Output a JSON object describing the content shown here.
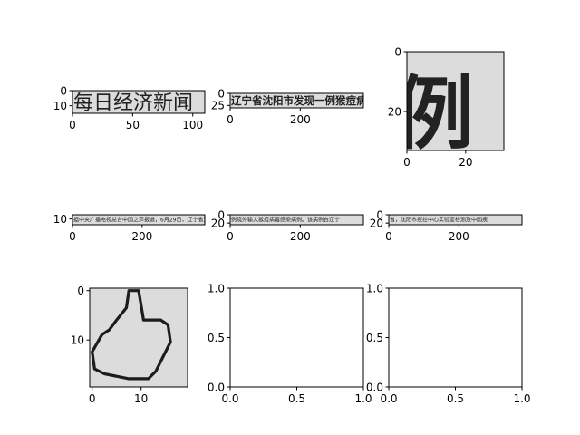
{
  "figure": {
    "background": "#ffffff",
    "image_background": "#dcdcdc",
    "axis_color": "#000000"
  },
  "chart_data": [
    {
      "type": "image",
      "panel": "row1-col1",
      "xlim": [
        0,
        110
      ],
      "ylim": [
        15,
        0
      ],
      "xticks": [
        "0",
        "50",
        "100"
      ],
      "yticks": [
        "0",
        "10"
      ],
      "xtick_values": [
        0,
        50,
        100
      ],
      "ytick_values": [
        0,
        10
      ],
      "image_text": "每日经济新闻",
      "grid": false
    },
    {
      "type": "image",
      "panel": "row1-col2",
      "xlim": [
        0,
        380
      ],
      "ylim": [
        30,
        0
      ],
      "xticks": [
        "0",
        "200"
      ],
      "yticks": [
        "0",
        "25"
      ],
      "xtick_values": [
        0,
        200
      ],
      "ytick_values": [
        0,
        25
      ],
      "image_text": "辽宁省沈阳市发现一例猴痘病",
      "grid": false
    },
    {
      "type": "image",
      "panel": "row1-col3",
      "xlim": [
        0,
        33
      ],
      "ylim": [
        33,
        0
      ],
      "xticks": [
        "0",
        "20"
      ],
      "yticks": [
        "0",
        "20"
      ],
      "xtick_values": [
        0,
        20
      ],
      "ytick_values": [
        0,
        20
      ],
      "image_text": "例",
      "grid": false
    },
    {
      "type": "image",
      "panel": "row2-col1",
      "xlim": [
        0,
        380
      ],
      "ylim": [
        24,
        0
      ],
      "xticks": [
        "0",
        "200"
      ],
      "yticks": [
        "10"
      ],
      "xtick_values": [
        0,
        200
      ],
      "ytick_values": [
        10
      ],
      "image_text": "据中央广播电视总台中国之声报道，6月29日，辽宁省沈阳市报告",
      "grid": false
    },
    {
      "type": "image",
      "panel": "row2-col2",
      "xlim": [
        0,
        380
      ],
      "ylim": [
        24,
        0
      ],
      "xticks": [
        "0",
        "200"
      ],
      "yticks": [
        "0",
        "20"
      ],
      "xtick_values": [
        0,
        200
      ],
      "ytick_values": [
        0,
        20
      ],
      "image_text": "例境外输入猴痘病毒感染病例。该病例自辽宁",
      "grid": false
    },
    {
      "type": "image",
      "panel": "row2-col3",
      "xlim": [
        0,
        380
      ],
      "ylim": [
        24,
        0
      ],
      "xticks": [
        "0",
        "200"
      ],
      "yticks": [
        "0",
        "20"
      ],
      "xtick_values": [
        0,
        200
      ],
      "ytick_values": [
        0,
        20
      ],
      "image_text": "省，沈阳市疾控中心实验室检测及中国疾",
      "grid": false
    },
    {
      "type": "image",
      "panel": "row3-col1",
      "xlim": [
        -0.5,
        19.5
      ],
      "ylim": [
        19.5,
        -0.5
      ],
      "xticks": [
        "0",
        "10"
      ],
      "yticks": [
        "0",
        "10"
      ],
      "xtick_values": [
        0,
        10
      ],
      "ytick_values": [
        0,
        10
      ],
      "image_text": "",
      "icon": "thumbs-up-icon",
      "grid": false
    },
    {
      "type": "empty",
      "panel": "row3-col2",
      "xlim": [
        0,
        1
      ],
      "ylim": [
        0,
        1
      ],
      "xticks": [
        "0.0",
        "0.5",
        "1.0"
      ],
      "yticks": [
        "0.0",
        "0.5",
        "1.0"
      ],
      "xtick_values": [
        0,
        0.5,
        1
      ],
      "ytick_values": [
        0,
        0.5,
        1
      ],
      "grid": false
    },
    {
      "type": "empty",
      "panel": "row3-col3",
      "xlim": [
        0,
        1
      ],
      "ylim": [
        0,
        1
      ],
      "xticks": [
        "0.0",
        "0.5",
        "1.0"
      ],
      "yticks": [
        "0.0",
        "0.5",
        "1.0"
      ],
      "xtick_values": [
        0,
        0.5,
        1
      ],
      "ytick_values": [
        0,
        0.5,
        1
      ],
      "grid": false
    }
  ]
}
